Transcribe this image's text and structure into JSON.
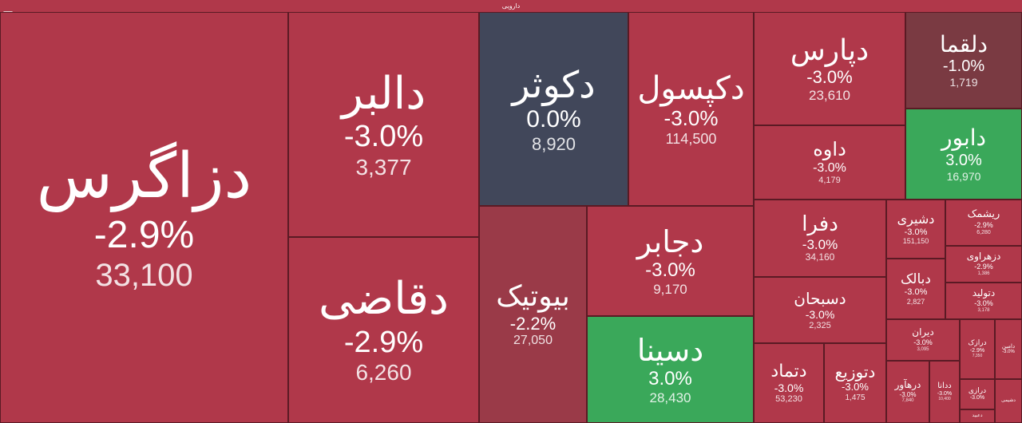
{
  "header": {
    "title": "دارویی"
  },
  "colors": {
    "red": "#b0384a",
    "dark_red": "#9a3a48",
    "darker_red": "#7a3a42",
    "neutral": "#41475a",
    "green": "#3aa85a"
  },
  "tiles": [
    {
      "name": "دزاگرس",
      "change": "-2.9%",
      "value": "33,100"
    },
    {
      "name": "دالبر",
      "change": "-3.0%",
      "value": "3,377"
    },
    {
      "name": "دقاضی",
      "change": "-2.9%",
      "value": "6,260"
    },
    {
      "name": "دکوثر",
      "change": "0.0%",
      "value": "8,920"
    },
    {
      "name": "دکپسول",
      "change": "-3.0%",
      "value": "114,500"
    },
    {
      "name": "دپارس",
      "change": "-3.0%",
      "value": "23,610"
    },
    {
      "name": "دلقما",
      "change": "-1.0%",
      "value": "1,719"
    },
    {
      "name": "داوه",
      "change": "-3.0%",
      "value": "4,179"
    },
    {
      "name": "دابور",
      "change": "3.0%",
      "value": "16,970"
    },
    {
      "name": "بیوتیک",
      "change": "-2.2%",
      "value": "27,050"
    },
    {
      "name": "دجابر",
      "change": "-3.0%",
      "value": "9,170"
    },
    {
      "name": "دسینا",
      "change": "3.0%",
      "value": "28,430"
    },
    {
      "name": "دفرا",
      "change": "-3.0%",
      "value": "34,160"
    },
    {
      "name": "دشیری",
      "change": "-3.0%",
      "value": "151,150"
    },
    {
      "name": "ریشمک",
      "change": "-2.9%",
      "value": "6,280"
    },
    {
      "name": "دزهراوی",
      "change": "-2.9%",
      "value": "1,386"
    },
    {
      "name": "دبالک",
      "change": "-3.0%",
      "value": "2,827"
    },
    {
      "name": "دتولید",
      "change": "-3.0%",
      "value": "3,178"
    },
    {
      "name": "دسبحان",
      "change": "-3.0%",
      "value": "2,325"
    },
    {
      "name": "دیران",
      "change": "-3.0%",
      "value": "3,095"
    },
    {
      "name": "درازک",
      "change": "-2.9%",
      "value": "7,350"
    },
    {
      "name": "دامین",
      "change": "-3.0%",
      "value": ""
    },
    {
      "name": "دتماد",
      "change": "-3.0%",
      "value": "53,230"
    },
    {
      "name": "دتوزیع",
      "change": "-3.0%",
      "value": "1,475"
    },
    {
      "name": "درهآور",
      "change": "-3.0%",
      "value": "7,840"
    },
    {
      "name": "ددانا",
      "change": "-3.0%",
      "value": "10,400"
    },
    {
      "name": "درازی",
      "change": "-3.0%",
      "value": ""
    },
    {
      "name": "دشیمی",
      "change": "",
      "value": ""
    },
    {
      "name": "دعبید",
      "change": "",
      "value": ""
    }
  ]
}
